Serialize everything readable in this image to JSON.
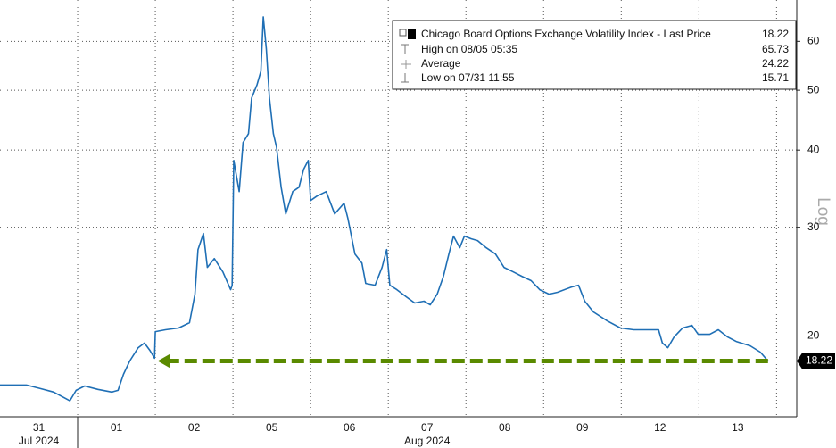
{
  "chart_data": {
    "type": "line",
    "log": true,
    "grid": true,
    "legend_position": "upper right",
    "y_label": "Log",
    "ylim": [
      14.8,
      70
    ],
    "yticks": [
      20,
      30,
      40,
      50,
      60
    ],
    "xlim": [
      0,
      10.26
    ],
    "categories": [
      "31",
      "01",
      "02",
      "05",
      "06",
      "07",
      "08",
      "09",
      "12",
      "13"
    ],
    "months": [
      {
        "label": "Jul 2024",
        "at": 0
      },
      {
        "label": "Aug 2024",
        "at": 5
      }
    ],
    "legend": [
      {
        "label": "Chicago Board Options Exchange Volatility Index - Last Price",
        "value": 18.22
      },
      {
        "label": "High on 08/05 05:35",
        "value": 65.73
      },
      {
        "label": "Average",
        "value": 24.22
      },
      {
        "label": "Low on 07/31 11:55",
        "value": 15.71
      }
    ],
    "x": [
      0,
      0.34,
      0.52,
      0.69,
      0.9,
      0.98,
      1.09,
      1.26,
      1.44,
      1.52,
      1.59,
      1.67,
      1.78,
      1.86,
      1.93,
      1.99,
      2.0,
      2.13,
      2.3,
      2.44,
      2.51,
      2.55,
      2.62,
      2.67,
      2.76,
      2.87,
      2.97,
      2.99,
      3.01,
      3.08,
      3.13,
      3.2,
      3.24,
      3.31,
      3.36,
      3.39,
      3.43,
      3.47,
      3.52,
      3.56,
      3.62,
      3.68,
      3.77,
      3.85,
      3.91,
      3.97,
      4.0,
      4.08,
      4.2,
      4.31,
      4.43,
      4.48,
      4.57,
      4.66,
      4.71,
      4.83,
      4.92,
      4.98,
      5.02,
      5.11,
      5.23,
      5.34,
      5.46,
      5.54,
      5.63,
      5.71,
      5.78,
      5.84,
      5.92,
      5.98,
      6.07,
      6.15,
      6.26,
      6.38,
      6.49,
      6.61,
      6.72,
      6.84,
      6.95,
      7.07,
      7.18,
      7.36,
      7.45,
      7.53,
      7.64,
      7.82,
      7.99,
      8.16,
      8.33,
      8.48,
      8.53,
      8.6,
      8.68,
      8.79,
      8.91,
      8.99,
      9.14,
      9.25,
      9.37,
      9.48,
      9.66,
      9.79,
      9.89
    ],
    "series": [
      {
        "name": "Chicago Board Options Exchange Volatility Index",
        "color": "#1f6fb5",
        "values": [
          16.66,
          16.66,
          16.44,
          16.23,
          15.71,
          16.33,
          16.6,
          16.39,
          16.23,
          16.33,
          17.34,
          18.22,
          19.15,
          19.48,
          18.96,
          18.41,
          20.33,
          20.47,
          20.61,
          21.02,
          23.38,
          27.6,
          29.31,
          25.83,
          26.7,
          25.4,
          23.77,
          24.17,
          38.48,
          34.26,
          41.13,
          42.52,
          48.56,
          51.04,
          53.65,
          65.73,
          58.29,
          48.56,
          42.52,
          40.45,
          34.83,
          31.53,
          34.26,
          34.83,
          37.23,
          38.48,
          33.14,
          33.69,
          34.26,
          31.53,
          32.81,
          31.01,
          27.15,
          26.26,
          24.33,
          24.17,
          25.83,
          27.6,
          24.17,
          23.77,
          23.15,
          22.62,
          22.77,
          22.47,
          23.38,
          24.99,
          27.15,
          29.02,
          27.79,
          29.02,
          28.73,
          28.54,
          27.79,
          27.15,
          25.83,
          25.4,
          24.99,
          24.58,
          23.77,
          23.38,
          23.54,
          24.01,
          24.17,
          22.77,
          21.88,
          21.16,
          20.61,
          20.47,
          20.47,
          20.47,
          19.48,
          19.15,
          19.93,
          20.61,
          20.81,
          20.13,
          20.13,
          20.47,
          19.93,
          19.6,
          19.28,
          18.84,
          18.22
        ]
      }
    ]
  }
}
